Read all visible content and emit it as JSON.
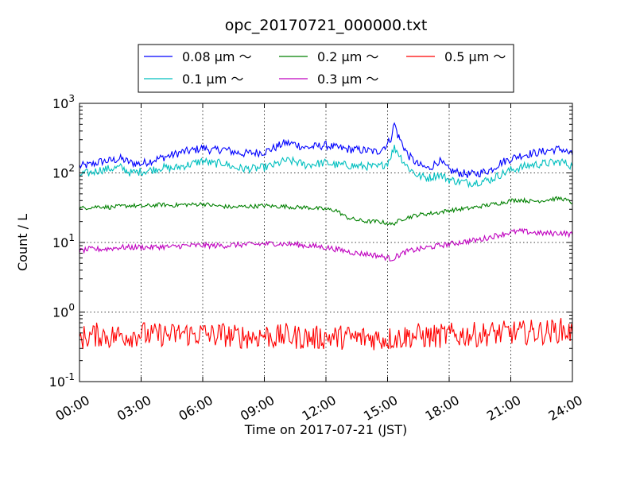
{
  "chart_data": {
    "type": "line",
    "title": "opc_20170721_000000.txt",
    "xlabel": "Time on 2017-07-21 (JST)",
    "ylabel": "Count / L",
    "yscale": "log",
    "ylim": [
      0.1,
      1000
    ],
    "xlim": [
      "2017-07-21 00:00",
      "2017-07-22 00:00"
    ],
    "x_ticks": [
      "00:00",
      "03:00",
      "06:00",
      "09:00",
      "12:00",
      "15:00",
      "18:00",
      "21:00",
      "24:00"
    ],
    "y_ticks": [
      {
        "base": "10",
        "exp": "-1",
        "value": 0.1
      },
      {
        "base": "10",
        "exp": "0",
        "value": 1
      },
      {
        "base": "10",
        "exp": "1",
        "value": 10
      },
      {
        "base": "10",
        "exp": "2",
        "value": 100
      },
      {
        "base": "10",
        "exp": "3",
        "value": 1000
      }
    ],
    "grid": true,
    "legend_position": "top-center",
    "x": [
      "00:00",
      "00:30",
      "01:00",
      "01:30",
      "02:00",
      "02:30",
      "03:00",
      "03:30",
      "04:00",
      "04:30",
      "05:00",
      "05:30",
      "06:00",
      "06:30",
      "07:00",
      "07:30",
      "08:00",
      "08:30",
      "09:00",
      "09:30",
      "10:00",
      "10:30",
      "11:00",
      "11:30",
      "12:00",
      "12:30",
      "13:00",
      "13:30",
      "14:00",
      "14:30",
      "15:00",
      "15:10",
      "15:20",
      "15:30",
      "15:45",
      "16:00",
      "16:30",
      "17:00",
      "17:30",
      "18:00",
      "18:30",
      "19:00",
      "19:30",
      "20:00",
      "20:30",
      "21:00",
      "21:30",
      "22:00",
      "22:30",
      "23:00",
      "23:30",
      "24:00"
    ],
    "series": [
      {
        "name": "0.08 μm ～",
        "color": "#0000ff",
        "values": [
          125,
          130,
          145,
          150,
          160,
          140,
          135,
          150,
          165,
          180,
          200,
          210,
          230,
          210,
          220,
          200,
          190,
          195,
          200,
          230,
          270,
          260,
          230,
          240,
          250,
          230,
          220,
          215,
          210,
          200,
          260,
          320,
          520,
          350,
          250,
          180,
          130,
          115,
          150,
          110,
          100,
          95,
          100,
          110,
          140,
          160,
          180,
          190,
          200,
          215,
          220,
          180
        ]
      },
      {
        "name": "0.1 μm ～",
        "color": "#00bfbf",
        "values": [
          95,
          100,
          110,
          115,
          120,
          100,
          105,
          110,
          120,
          115,
          125,
          135,
          150,
          135,
          140,
          120,
          115,
          115,
          120,
          130,
          150,
          145,
          130,
          135,
          140,
          130,
          130,
          125,
          125,
          120,
          140,
          180,
          230,
          200,
          150,
          120,
          90,
          85,
          95,
          80,
          75,
          72,
          75,
          80,
          95,
          110,
          120,
          130,
          135,
          140,
          145,
          125
        ]
      },
      {
        "name": "0.2 μm ～",
        "color": "#008000",
        "values": [
          31,
          32,
          33,
          32,
          33,
          34,
          33,
          34,
          35,
          34,
          35,
          35,
          36,
          34,
          33,
          32,
          33,
          33,
          34,
          33,
          33,
          32,
          32,
          31,
          30,
          29,
          23,
          21,
          20,
          20,
          19,
          18,
          19,
          20,
          22,
          23,
          25,
          26,
          27,
          29,
          30,
          31,
          33,
          35,
          37,
          40,
          41,
          39,
          40,
          42,
          43,
          37
        ]
      },
      {
        "name": "0.3 μm ～",
        "color": "#bf00bf",
        "values": [
          7.5,
          8,
          8,
          8.2,
          8.5,
          8.5,
          8.6,
          8.5,
          8.7,
          8.6,
          9,
          9,
          9.1,
          9,
          9,
          9.2,
          9.3,
          9.4,
          9.5,
          9.7,
          9.5,
          9.4,
          9,
          8.8,
          8.5,
          8,
          7.5,
          7,
          6.8,
          6.5,
          6,
          5.8,
          6,
          6.5,
          7,
          7.5,
          8,
          8.5,
          9,
          9.5,
          10,
          10.5,
          11,
          12,
          13,
          14,
          14.5,
          14,
          13.5,
          13.5,
          13.8,
          13
        ]
      },
      {
        "name": "0.5 μm ～",
        "color": "#ff0000",
        "values": [
          0.42,
          0.45,
          0.48,
          0.44,
          0.47,
          0.46,
          0.5,
          0.45,
          0.48,
          0.46,
          0.5,
          0.47,
          0.49,
          0.46,
          0.48,
          0.44,
          0.45,
          0.44,
          0.47,
          0.43,
          0.46,
          0.44,
          0.43,
          0.42,
          0.44,
          0.43,
          0.44,
          0.42,
          0.43,
          0.42,
          0.41,
          0.42,
          0.43,
          0.42,
          0.44,
          0.45,
          0.46,
          0.44,
          0.45,
          0.47,
          0.46,
          0.48,
          0.47,
          0.5,
          0.49,
          0.51,
          0.5,
          0.52,
          0.51,
          0.53,
          0.55,
          0.5
        ]
      }
    ]
  }
}
